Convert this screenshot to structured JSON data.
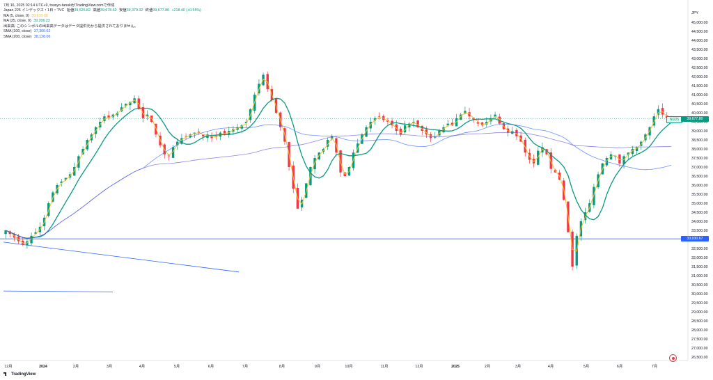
{
  "title_line": "7月 16, 2025 02:14 UTC+9,  tousyo-tanukiがTradingView.comで作成",
  "header": {
    "symbol_title": "Japan 225 インデックス・1日・TVC",
    "open_label": "始値",
    "open_value": "39,525.82",
    "high_label": "高値",
    "high_value": "39,678.62",
    "low_label": "安値",
    "low_value": "39,379.32",
    "close_label": "終値",
    "close_value": "39,677.80",
    "change_value": "+218.40 (+0.55%)"
  },
  "indicators": [
    {
      "label": "MA (5, close, 0)",
      "value": "39,610.08",
      "color": "#f5c02a"
    },
    {
      "label": "MA (25, close, 0)",
      "value": "39,206.22",
      "color": "#089981"
    },
    {
      "label": "出来高: このシンボルの出来高データはデータ提供元から提供されておりません。",
      "value": "",
      "color": "#131722"
    },
    {
      "label": "SMA (100, close)",
      "value": "37,300.62",
      "color": "#2962ff"
    },
    {
      "label": "SMA (200, close)",
      "value": "38,128.06",
      "color": "#5b4ee0"
    }
  ],
  "currency": "JPY",
  "price_axis": [
    "45,000.00",
    "44,500.00",
    "44,000.00",
    "43,500.00",
    "43,000.00",
    "42,500.00",
    "42,000.00",
    "41,500.00",
    "41,000.00",
    "40,500.00",
    "40,000.00",
    "39,500.00",
    "39,000.00",
    "38,500.00",
    "38,000.00",
    "37,500.00",
    "37,000.00",
    "36,500.00",
    "36,000.00",
    "35,500.00",
    "35,000.00",
    "34,500.00",
    "34,000.00",
    "33,500.00",
    "33,000.00",
    "32,500.00",
    "32,000.00",
    "31,500.00",
    "31,000.00",
    "30,500.00",
    "30,000.00",
    "29,500.00",
    "29,000.00",
    "28,500.00",
    "28,000.00",
    "27,500.00",
    "27,000.00",
    "26,500.00"
  ],
  "time_axis": [
    "12月",
    "2024",
    "2月",
    "3月",
    "4月",
    "5月",
    "6月",
    "7月",
    "8月",
    "9月",
    "10月",
    "11月",
    "12月",
    "2025",
    "2月",
    "3月",
    "4月",
    "5月",
    "6月",
    "7月"
  ],
  "price_tags": {
    "symbol": "NI225",
    "last": "39,677.80",
    "last_color": "#089981",
    "line_level": "33,030.67",
    "line_color": "#2962ff"
  },
  "chart_data": {
    "type": "candlestick",
    "ylim": [
      26500,
      45000
    ],
    "level_lines": [
      33030.67
    ],
    "closes": [
      33500,
      33300,
      33100,
      32900,
      32700,
      32900,
      33200,
      33400,
      33700,
      34200,
      35000,
      35600,
      36000,
      36200,
      36400,
      36600,
      37000,
      37600,
      38000,
      38500,
      38800,
      39200,
      39500,
      39800,
      39700,
      39900,
      40000,
      40300,
      40500,
      40600,
      40800,
      40200,
      39700,
      39900,
      39500,
      38800,
      38200,
      37700,
      37600,
      38100,
      38400,
      38600,
      38700,
      38800,
      38900,
      38900,
      38700,
      38800,
      38600,
      38700,
      38900,
      38800,
      39000,
      39100,
      39200,
      39300,
      39500,
      40200,
      41000,
      41600,
      42100,
      41300,
      40700,
      40000,
      39200,
      38400,
      37000,
      35800,
      34700,
      35200,
      36100,
      37000,
      37500,
      37800,
      38000,
      38500,
      38700,
      37800,
      36700,
      36500,
      37000,
      37800,
      38300,
      38800,
      39200,
      39500,
      39700,
      39800,
      39600,
      39500,
      39300,
      39000,
      38800,
      39300,
      39400,
      39500,
      39200,
      39000,
      38800,
      38600,
      38700,
      39000,
      39200,
      39400,
      39300,
      39700,
      39900,
      40100,
      39800,
      39600,
      39400,
      39300,
      39500,
      39700,
      39900,
      39400,
      39100,
      38900,
      39000,
      38700,
      38400,
      37800,
      37400,
      37200,
      37900,
      38100,
      37700,
      36900,
      36700,
      36300,
      35200,
      33400,
      31500,
      33200,
      34000,
      34500,
      35000,
      35900,
      36600,
      37200,
      37500,
      37700,
      37600,
      37200,
      37600,
      37800,
      38000,
      38100,
      38400,
      38800,
      39200,
      39800,
      40200,
      39900,
      39700,
      39677.8
    ],
    "series": [
      {
        "name": "MA (5, close, 0)",
        "color": "#f5c02a"
      },
      {
        "name": "MA (25, close, 0)",
        "color": "#089981"
      },
      {
        "name": "SMA (100, close)",
        "color": "#2962ff"
      },
      {
        "name": "SMA (200, close)",
        "color": "#5b4ee0"
      }
    ],
    "up_color": "#089981",
    "down_color": "#f23645"
  }
}
